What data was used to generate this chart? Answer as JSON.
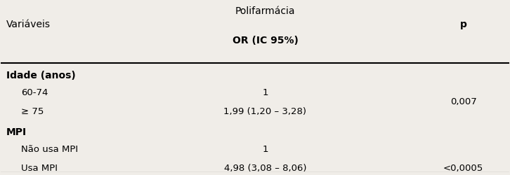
{
  "header_col1": "Variáveis",
  "header_col2_line1": "Polifarmácia",
  "header_col2_line2": "OR (IC 95%)",
  "header_col3": "p",
  "rows": [
    {
      "label": "Idade (anos)",
      "indent": 0,
      "bold": true,
      "or_value": "",
      "p_value": "",
      "p_row": false
    },
    {
      "label": "60-74",
      "indent": 1,
      "bold": false,
      "or_value": "1",
      "p_value": "",
      "p_row": false
    },
    {
      "label": "≥ 75",
      "indent": 1,
      "bold": false,
      "or_value": "1,99 (1,20 – 3,28)",
      "p_value": "0,007",
      "p_row": true
    },
    {
      "label": "MPI",
      "indent": 0,
      "bold": true,
      "or_value": "",
      "p_value": "",
      "p_row": false
    },
    {
      "label": "Não usa MPI",
      "indent": 1,
      "bold": false,
      "or_value": "1",
      "p_value": "",
      "p_row": false
    },
    {
      "label": "Usa MPI",
      "indent": 1,
      "bold": false,
      "or_value": "4,98 (3,08 – 8,06)",
      "p_value": "<0,0005",
      "p_row": true
    }
  ],
  "bg_color": "#f0ede8",
  "line_color": "#000000",
  "text_color": "#000000",
  "font_size": 9.5,
  "header_font_size": 10,
  "bold_font_size": 10
}
